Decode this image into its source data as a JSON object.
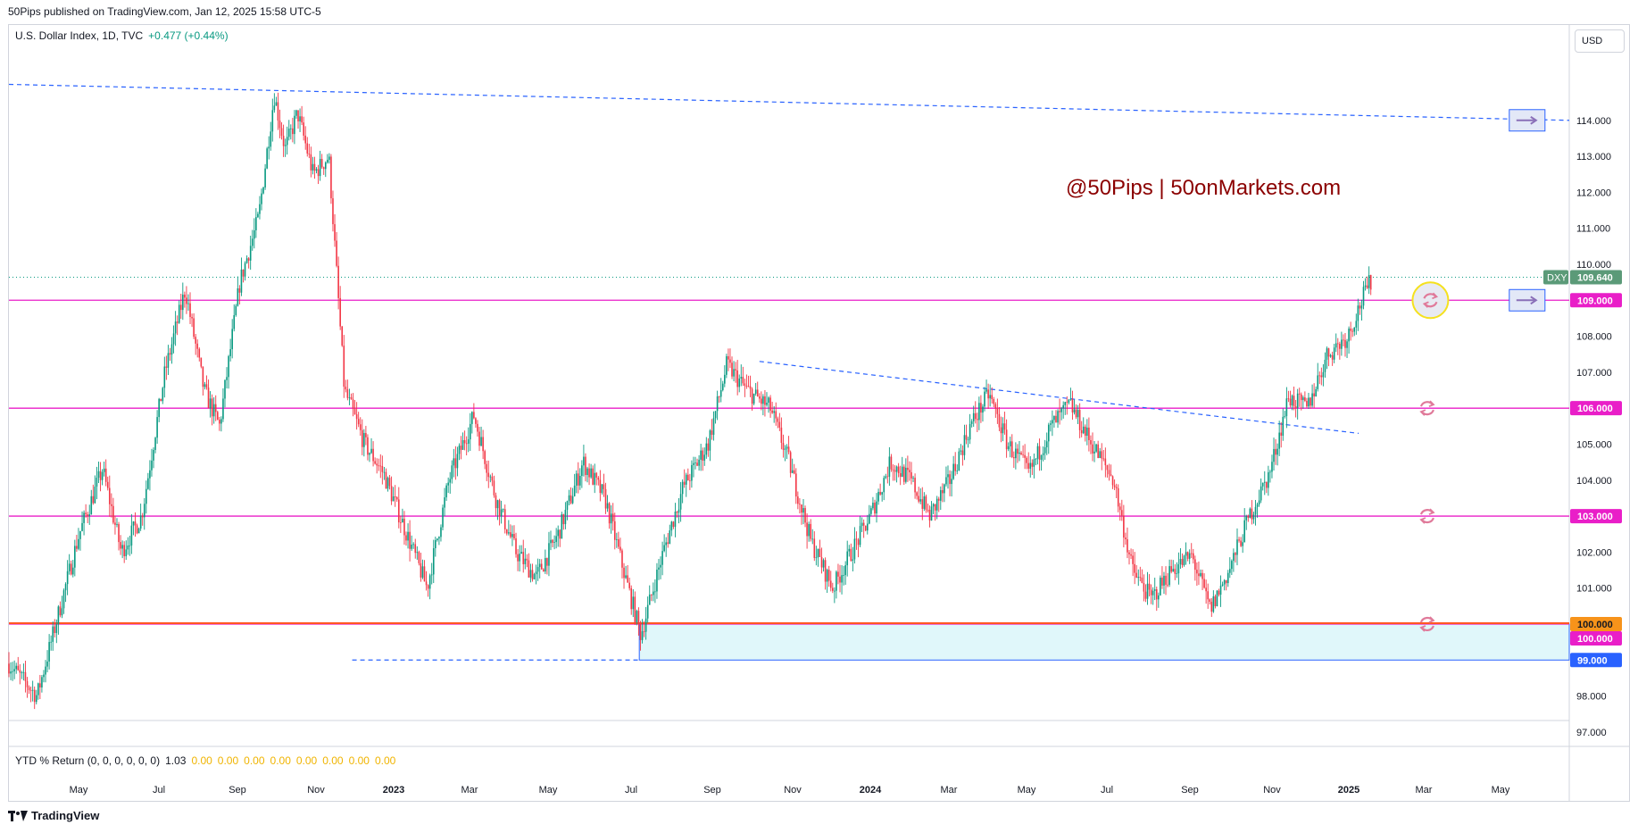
{
  "header": {
    "published": "50Pips published on TradingView.com, Jan 12, 2025 15:58 UTC-5"
  },
  "legend": {
    "symbol": "U.S. Dollar Index, 1D, TVC",
    "change": "+0.477 (+0.44%)"
  },
  "currency_button": "USD",
  "watermark": "@50Pips | 50onMarkets.com",
  "colors": {
    "up": "#089981",
    "down": "#f23645",
    "level": "#e91ec8",
    "trend": "#2962ff",
    "support_zone": "#e0f7fa",
    "orange": "#ff5722",
    "watermark": "#8b0000"
  },
  "indicator": {
    "label": "YTD % Return (0, 0, 0, 0, 0, 0)",
    "value": "1.03",
    "zeros": [
      "0.00",
      "0.00",
      "0.00",
      "0.00",
      "0.00",
      "0.00",
      "0.00",
      "0.00"
    ]
  },
  "footer": {
    "brand": "TradingView",
    "logo_icon": "tradingview-logo-icon"
  },
  "chart_data": {
    "type": "candlestick",
    "title": "U.S. Dollar Index, 1D, TVC",
    "ylim": [
      96.6,
      116.6
    ],
    "y_ticks": [
      "97.000",
      "98.000",
      "99.000",
      "100.000",
      "101.000",
      "102.000",
      "103.000",
      "104.000",
      "105.000",
      "106.000",
      "107.000",
      "108.000",
      "109.000",
      "110.000",
      "111.000",
      "112.000",
      "113.000",
      "114.000"
    ],
    "x_ticks": [
      "May",
      "Jul",
      "Sep",
      "Nov",
      "2023",
      "Mar",
      "May",
      "Jul",
      "Sep",
      "Nov",
      "2024",
      "Mar",
      "May",
      "Jul",
      "Sep",
      "Nov",
      "2025",
      "Mar",
      "May"
    ],
    "x_tick_bold": [
      false,
      false,
      false,
      false,
      true,
      false,
      false,
      false,
      false,
      false,
      true,
      false,
      false,
      false,
      false,
      false,
      true,
      false,
      false
    ],
    "price_path": [
      [
        0,
        98.9
      ],
      [
        0.018,
        98.0
      ],
      [
        0.03,
        100.0
      ],
      [
        0.045,
        102.5
      ],
      [
        0.06,
        104.3
      ],
      [
        0.072,
        102.0
      ],
      [
        0.085,
        103.0
      ],
      [
        0.1,
        107.0
      ],
      [
        0.113,
        109.3
      ],
      [
        0.125,
        106.5
      ],
      [
        0.135,
        105.5
      ],
      [
        0.148,
        109.5
      ],
      [
        0.16,
        111.3
      ],
      [
        0.17,
        114.7
      ],
      [
        0.177,
        113.2
      ],
      [
        0.185,
        114.2
      ],
      [
        0.195,
        112.5
      ],
      [
        0.205,
        113.0
      ],
      [
        0.215,
        106.5
      ],
      [
        0.228,
        105.0
      ],
      [
        0.24,
        104.2
      ],
      [
        0.255,
        102.5
      ],
      [
        0.268,
        101.0
      ],
      [
        0.282,
        104.0
      ],
      [
        0.298,
        105.8
      ],
      [
        0.312,
        103.5
      ],
      [
        0.325,
        102.0
      ],
      [
        0.338,
        101.3
      ],
      [
        0.352,
        102.5
      ],
      [
        0.368,
        104.5
      ],
      [
        0.382,
        103.5
      ],
      [
        0.395,
        101.3
      ],
      [
        0.405,
        99.7
      ],
      [
        0.418,
        101.8
      ],
      [
        0.432,
        103.8
      ],
      [
        0.448,
        105.0
      ],
      [
        0.46,
        107.2
      ],
      [
        0.473,
        106.5
      ],
      [
        0.488,
        106.0
      ],
      [
        0.5,
        104.5
      ],
      [
        0.514,
        102.3
      ],
      [
        0.528,
        101.0
      ],
      [
        0.54,
        102.0
      ],
      [
        0.552,
        103.0
      ],
      [
        0.565,
        104.5
      ],
      [
        0.578,
        104.0
      ],
      [
        0.59,
        103.0
      ],
      [
        0.603,
        104.0
      ],
      [
        0.616,
        105.5
      ],
      [
        0.628,
        106.4
      ],
      [
        0.64,
        105.0
      ],
      [
        0.654,
        104.2
      ],
      [
        0.668,
        105.5
      ],
      [
        0.68,
        106.1
      ],
      [
        0.694,
        105.0
      ],
      [
        0.708,
        104.0
      ],
      [
        0.72,
        101.5
      ],
      [
        0.732,
        100.7
      ],
      [
        0.745,
        101.5
      ],
      [
        0.758,
        101.9
      ],
      [
        0.77,
        100.4
      ],
      [
        0.782,
        101.5
      ],
      [
        0.795,
        103.0
      ],
      [
        0.808,
        104.2
      ],
      [
        0.82,
        106.3
      ],
      [
        0.832,
        106.0
      ],
      [
        0.845,
        107.5
      ],
      [
        0.858,
        108.0
      ],
      [
        0.868,
        109.1
      ],
      [
        0.874,
        109.64
      ]
    ],
    "levels": [
      {
        "price": 109.0,
        "label": "109.000",
        "color": "#e91ec8"
      },
      {
        "price": 106.0,
        "label": "106.000",
        "color": "#e91ec8"
      },
      {
        "price": 103.0,
        "label": "103.000",
        "color": "#e91ec8"
      },
      {
        "price": 100.0,
        "label": "100.000",
        "color": "#e91ec8"
      }
    ],
    "orange_level": {
      "price": 100.0,
      "label": "100.000",
      "color": "#f7931a"
    },
    "support_zone": {
      "from": 99.0,
      "to": 100.0,
      "label": "99.000",
      "x_start": 0.404
    },
    "last_price": {
      "price": 109.64,
      "label": "109.640",
      "symbol": "DXY"
    },
    "trendlines": [
      {
        "x1": 0.0,
        "y1": 115.0,
        "x2": 1.0,
        "y2": 114.0
      },
      {
        "x1": 0.481,
        "y1": 107.3,
        "x2": 0.865,
        "y2": 105.3
      },
      {
        "x1": 0.22,
        "y1": 99.0,
        "x2": 0.404,
        "y2": 99.0
      }
    ],
    "arrow_markers": [
      {
        "x": 0.973,
        "price": 114.0
      },
      {
        "x": 0.973,
        "price": 109.0
      }
    ],
    "alert_markers": [
      {
        "x": 0.911,
        "price": 109.0,
        "highlight": true
      },
      {
        "x": 0.909,
        "price": 106.0,
        "highlight": false
      },
      {
        "x": 0.909,
        "price": 103.0,
        "highlight": false
      },
      {
        "x": 0.909,
        "price": 100.0,
        "highlight": false
      }
    ]
  }
}
